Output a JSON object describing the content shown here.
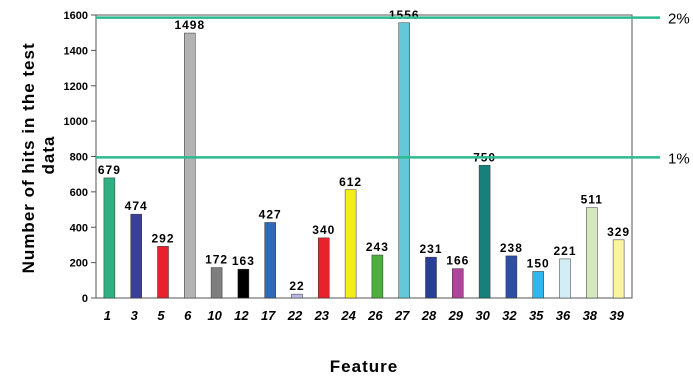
{
  "chart_data": {
    "type": "bar",
    "xlabel": "Feature",
    "ylabel_lines": [
      "Number of hits in the test",
      "data"
    ],
    "ylim": [
      0,
      1600
    ],
    "yticks": [
      0,
      200,
      400,
      600,
      800,
      1000,
      1200,
      1400,
      1600
    ],
    "grid": false,
    "categories": [
      "1",
      "3",
      "5",
      "6",
      "10",
      "12",
      "17",
      "22",
      "23",
      "24",
      "26",
      "27",
      "28",
      "29",
      "30",
      "32",
      "35",
      "36",
      "38",
      "39"
    ],
    "values": [
      679,
      474,
      292,
      1498,
      172,
      163,
      427,
      22,
      340,
      612,
      243,
      1556,
      231,
      166,
      750,
      238,
      150,
      221,
      511,
      329
    ],
    "colors": [
      "#2fb083",
      "#3b3f9a",
      "#e8212b",
      "#b3b3b3",
      "#7f7f7f",
      "#000000",
      "#2f6ab8",
      "#b8b8e8",
      "#e8212b",
      "#f3ee16",
      "#4fae3e",
      "#64c8d8",
      "#283f9a",
      "#b0449a",
      "#16807a",
      "#2e4ea3",
      "#2fb7ef",
      "#d2eef4",
      "#d5e8bd",
      "#f8f4a0"
    ],
    "reference_lines": [
      {
        "value": 1585,
        "label": "2%",
        "color": "#2eba8f"
      },
      {
        "value": 795,
        "label": "1%",
        "color": "#2eba8f"
      }
    ]
  }
}
